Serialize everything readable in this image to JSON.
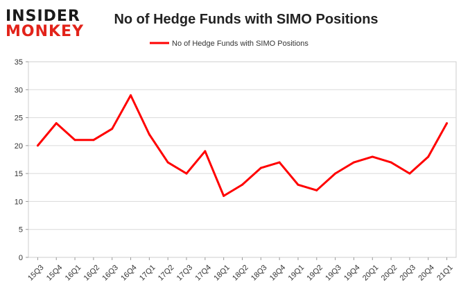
{
  "logo": {
    "line1": "INSIDER",
    "line2": "MONKEY",
    "color_dark": "#1a1a1a",
    "color_accent": "#e2231a"
  },
  "chart_data": {
    "type": "line",
    "title": "No of Hedge Funds with SIMO Positions",
    "xlabel": "",
    "ylabel": "",
    "categories": [
      "15Q3",
      "15Q4",
      "16Q1",
      "16Q2",
      "16Q3",
      "16Q4",
      "17Q1",
      "17Q2",
      "17Q3",
      "17Q4",
      "18Q1",
      "18Q2",
      "18Q3",
      "18Q4",
      "19Q1",
      "19Q2",
      "19Q3",
      "19Q4",
      "20Q1",
      "20Q2",
      "20Q3",
      "20Q4",
      "21Q1"
    ],
    "series": [
      {
        "name": "No of Hedge Funds with SIMO Positions",
        "color": "#ff0000",
        "values": [
          20,
          24,
          21,
          21,
          23,
          29,
          22,
          17,
          15,
          19,
          11,
          13,
          16,
          17,
          13,
          12,
          15,
          17,
          18,
          17,
          15,
          18,
          24
        ]
      }
    ],
    "ylim": [
      0,
      35
    ],
    "yticks": [
      0,
      5,
      10,
      15,
      20,
      25,
      30,
      35
    ],
    "grid": true,
    "legend_position": "top-center"
  }
}
